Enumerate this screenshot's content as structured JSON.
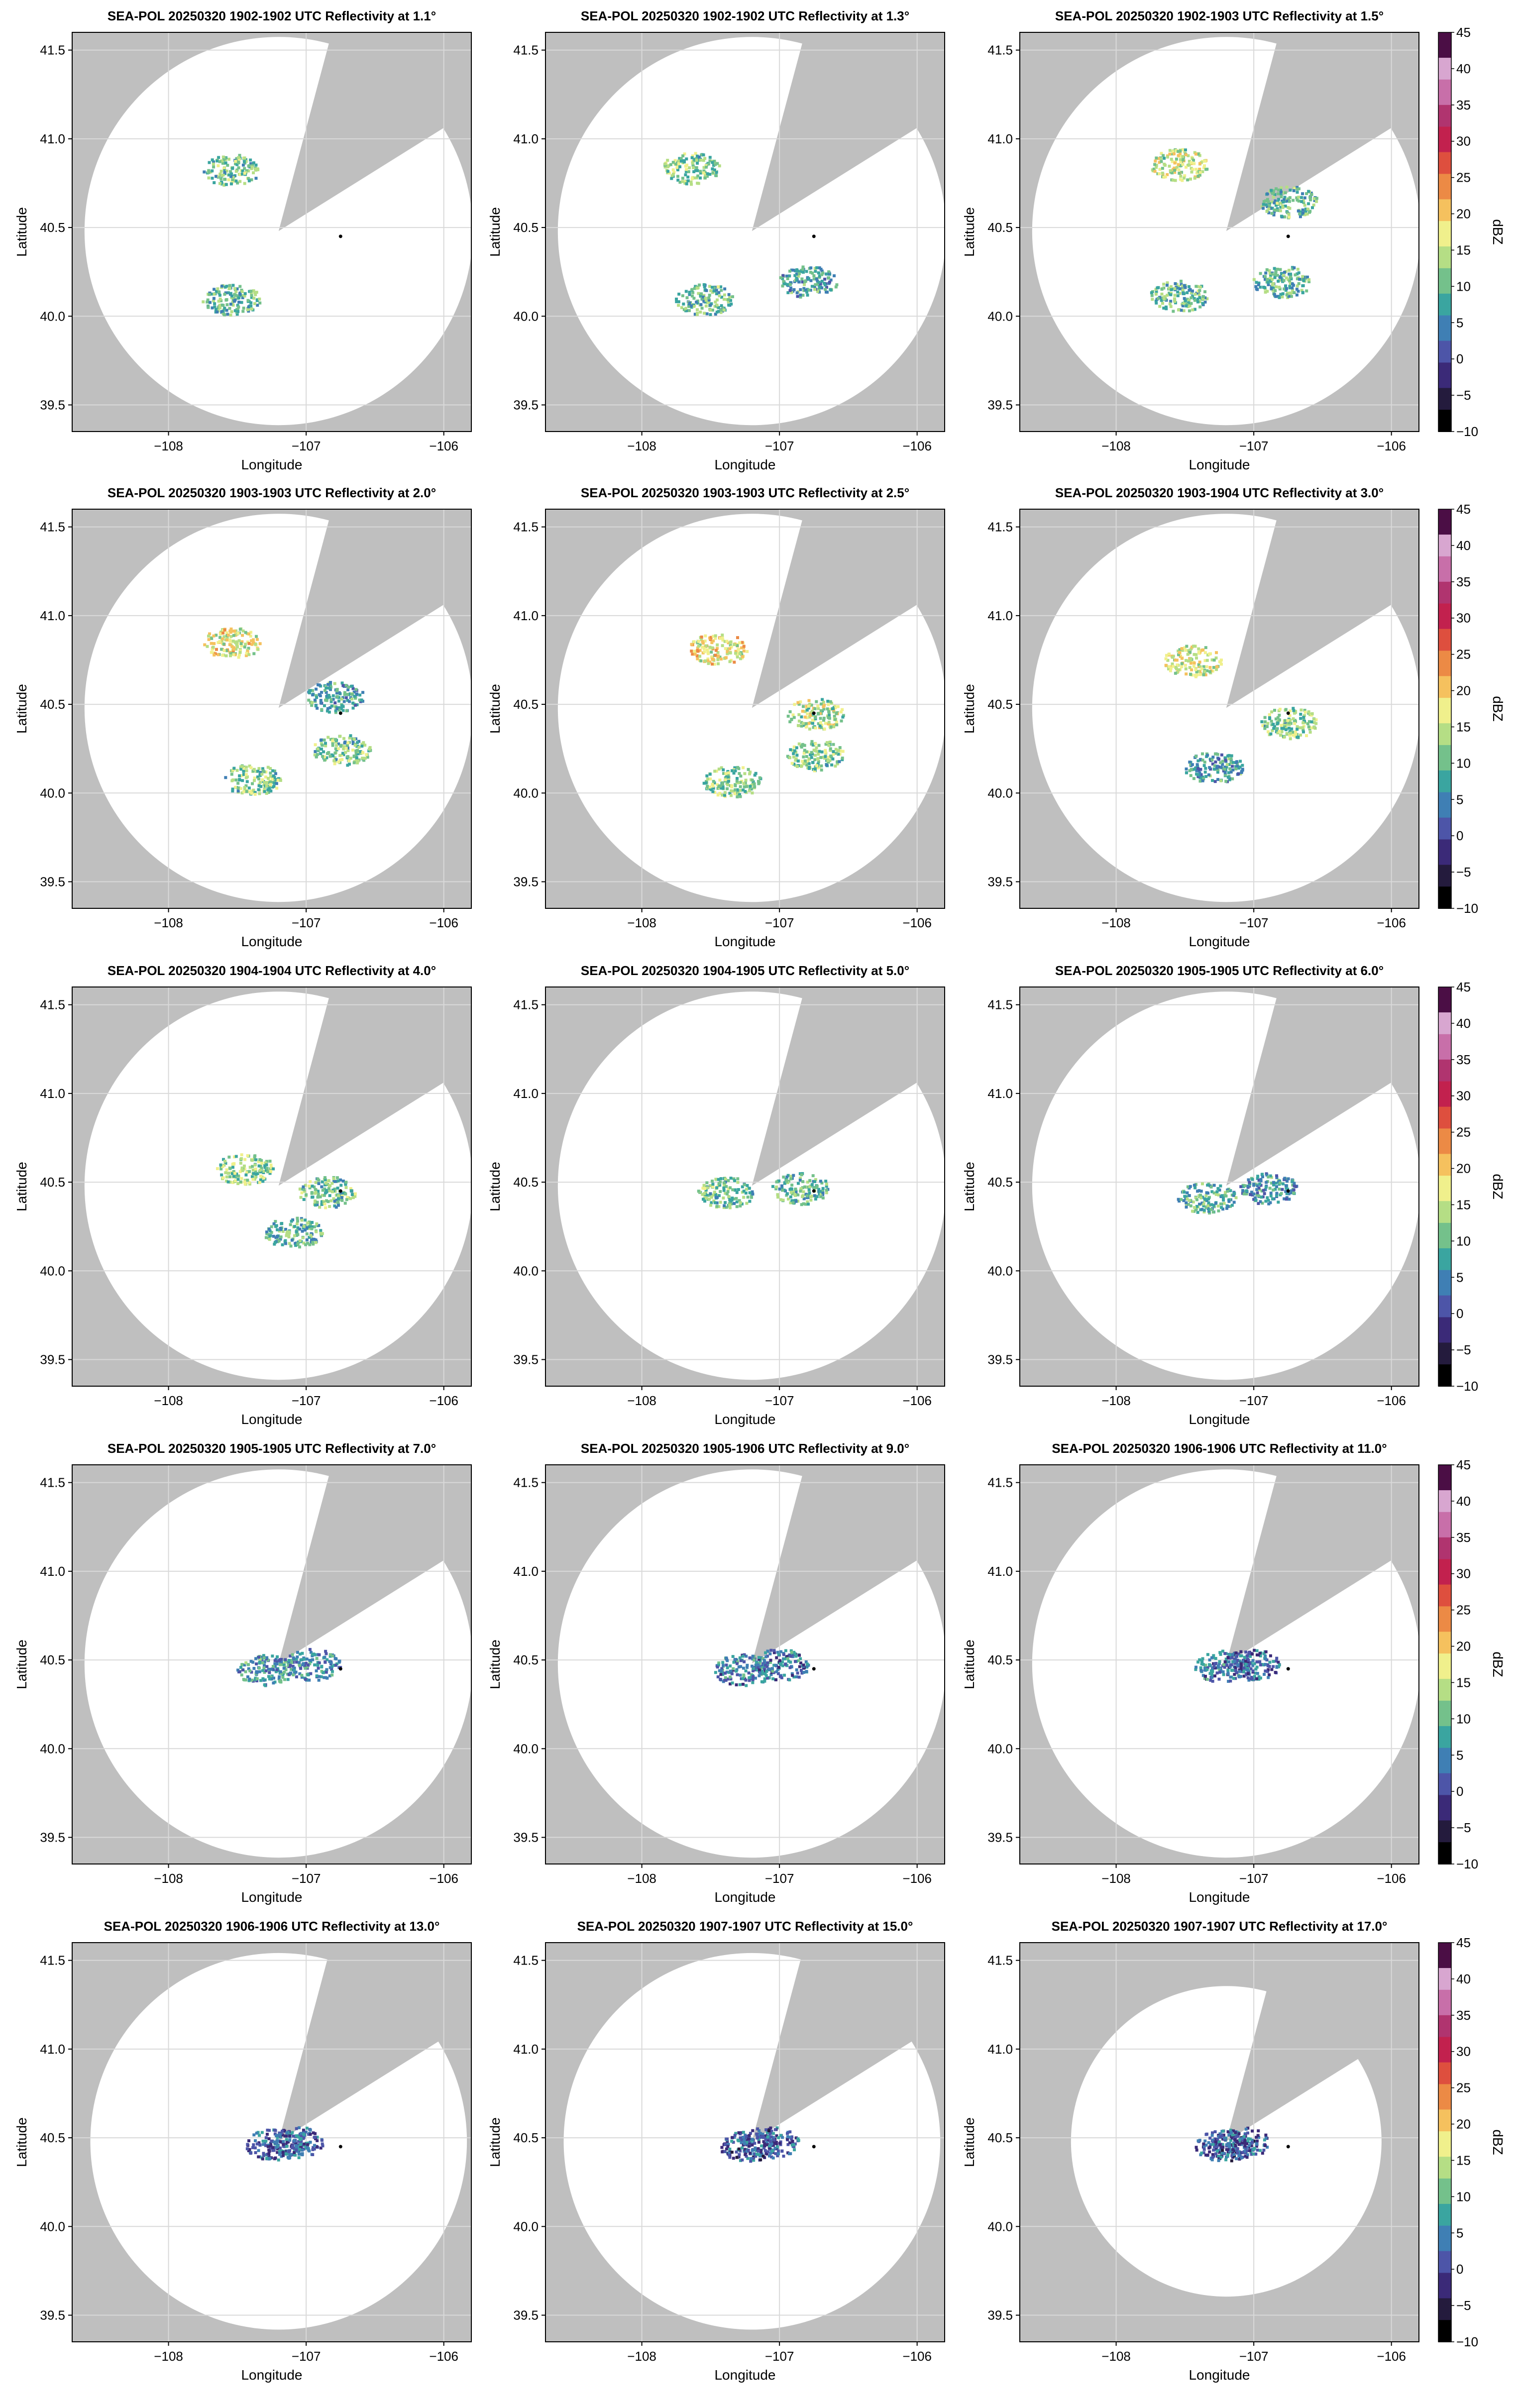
{
  "colors": {
    "background": "#bfbfbf",
    "coverage": "#ffffff",
    "grid": "#d9d9d9",
    "radar_marker": "#000000",
    "colormap": [
      "#000000",
      "#241b3d",
      "#3b2a78",
      "#4d55a8",
      "#3f7fb4",
      "#3aa5a0",
      "#74c18b",
      "#b5de85",
      "#f0f08c",
      "#f5c15e",
      "#ec8a45",
      "#de4f3e",
      "#c2214e",
      "#b0346f",
      "#c86fa9",
      "#d8a6d0",
      "#4b0e45"
    ]
  },
  "colorbar": {
    "label": "dBZ",
    "ticks": [
      "45",
      "40",
      "35",
      "30",
      "25",
      "20",
      "15",
      "10",
      "5",
      "0",
      "−5",
      "−10"
    ]
  },
  "chart_data": [
    {
      "type": "heatmap",
      "title": "SEA-POL 20250320 1902-1902 UTC Reflectivity at 1.1°",
      "xlabel": "Longitude",
      "ylabel": "Latitude",
      "xlim": [
        -108.7,
        -105.8
      ],
      "ylim": [
        39.35,
        41.6
      ],
      "xticks": [
        "−108",
        "−107",
        "−106"
      ],
      "yticks": [
        "39.5",
        "40.0",
        "40.5",
        "41.0",
        "41.5"
      ],
      "radar_site": [
        -106.75,
        40.45
      ],
      "sweep_center": [
        -107.2,
        40.48
      ],
      "elevation_deg": 1.1,
      "echoes": [
        {
          "lon": -107.55,
          "lat": 40.83,
          "dbz": 11
        },
        {
          "lon": -107.55,
          "lat": 40.1,
          "dbz": 10
        }
      ]
    },
    {
      "type": "heatmap",
      "title": "SEA-POL 20250320 1902-1902 UTC Reflectivity at 1.3°",
      "xlabel": "Longitude",
      "ylabel": "Latitude",
      "xlim": [
        -108.7,
        -105.8
      ],
      "ylim": [
        39.35,
        41.6
      ],
      "xticks": [
        "−108",
        "−107",
        "−106"
      ],
      "yticks": [
        "39.5",
        "40.0",
        "40.5",
        "41.0",
        "41.5"
      ],
      "radar_site": [
        -106.75,
        40.45
      ],
      "sweep_center": [
        -107.2,
        40.48
      ],
      "elevation_deg": 1.3,
      "echoes": [
        {
          "lon": -107.65,
          "lat": 40.84,
          "dbz": 12
        },
        {
          "lon": -107.55,
          "lat": 40.1,
          "dbz": 10
        },
        {
          "lon": -106.8,
          "lat": 40.2,
          "dbz": 8
        }
      ]
    },
    {
      "type": "heatmap",
      "title": "SEA-POL 20250320 1902-1903 UTC Reflectivity at 1.5°",
      "xlabel": "Longitude",
      "ylabel": "Latitude",
      "xlim": [
        -108.7,
        -105.8
      ],
      "ylim": [
        39.35,
        41.6
      ],
      "xticks": [
        "−108",
        "−107",
        "−106"
      ],
      "yticks": [
        "39.5",
        "40.0",
        "40.5",
        "41.0",
        "41.5"
      ],
      "radar_site": [
        -106.75,
        40.45
      ],
      "sweep_center": [
        -107.2,
        40.48
      ],
      "elevation_deg": 1.5,
      "echoes": [
        {
          "lon": -107.55,
          "lat": 40.86,
          "dbz": 15
        },
        {
          "lon": -106.75,
          "lat": 40.65,
          "dbz": 10
        },
        {
          "lon": -107.55,
          "lat": 40.12,
          "dbz": 10
        },
        {
          "lon": -106.8,
          "lat": 40.2,
          "dbz": 9
        }
      ]
    },
    {
      "type": "heatmap",
      "title": "SEA-POL 20250320 1903-1903 UTC Reflectivity at 2.0°",
      "xlabel": "Longitude",
      "ylabel": "Latitude",
      "xlim": [
        -108.7,
        -105.8
      ],
      "ylim": [
        39.35,
        41.6
      ],
      "xticks": [
        "−108",
        "−107",
        "−106"
      ],
      "yticks": [
        "39.5",
        "40.0",
        "40.5",
        "41.0",
        "41.5"
      ],
      "radar_site": [
        -106.75,
        40.45
      ],
      "sweep_center": [
        -107.2,
        40.48
      ],
      "elevation_deg": 2.0,
      "echoes": [
        {
          "lon": -107.55,
          "lat": 40.85,
          "dbz": 17
        },
        {
          "lon": -106.8,
          "lat": 40.55,
          "dbz": 8
        },
        {
          "lon": -106.75,
          "lat": 40.25,
          "dbz": 11
        },
        {
          "lon": -107.4,
          "lat": 40.08,
          "dbz": 12
        }
      ]
    },
    {
      "type": "heatmap",
      "title": "SEA-POL 20250320 1903-1903 UTC Reflectivity at 2.5°",
      "xlabel": "Longitude",
      "ylabel": "Latitude",
      "xlim": [
        -108.7,
        -105.8
      ],
      "ylim": [
        39.35,
        41.6
      ],
      "xticks": [
        "−108",
        "−107",
        "−106"
      ],
      "yticks": [
        "39.5",
        "40.0",
        "40.5",
        "41.0",
        "41.5"
      ],
      "radar_site": [
        -106.75,
        40.45
      ],
      "sweep_center": [
        -107.2,
        40.48
      ],
      "elevation_deg": 2.5,
      "echoes": [
        {
          "lon": -107.45,
          "lat": 40.82,
          "dbz": 18
        },
        {
          "lon": -106.75,
          "lat": 40.45,
          "dbz": 14
        },
        {
          "lon": -106.75,
          "lat": 40.22,
          "dbz": 12
        },
        {
          "lon": -107.35,
          "lat": 40.07,
          "dbz": 12
        }
      ]
    },
    {
      "type": "heatmap",
      "title": "SEA-POL 20250320 1903-1904 UTC Reflectivity at 3.0°",
      "xlabel": "Longitude",
      "ylabel": "Latitude",
      "xlim": [
        -108.7,
        -105.8
      ],
      "ylim": [
        39.35,
        41.6
      ],
      "xticks": [
        "−108",
        "−107",
        "−106"
      ],
      "yticks": [
        "39.5",
        "40.0",
        "40.5",
        "41.0",
        "41.5"
      ],
      "radar_site": [
        -106.75,
        40.45
      ],
      "sweep_center": [
        -107.2,
        40.48
      ],
      "elevation_deg": 3.0,
      "echoes": [
        {
          "lon": -107.45,
          "lat": 40.75,
          "dbz": 16
        },
        {
          "lon": -106.75,
          "lat": 40.4,
          "dbz": 12
        },
        {
          "lon": -107.3,
          "lat": 40.15,
          "dbz": 7
        }
      ]
    },
    {
      "type": "heatmap",
      "title": "SEA-POL 20250320 1904-1904 UTC Reflectivity at 4.0°",
      "xlabel": "Longitude",
      "ylabel": "Latitude",
      "xlim": [
        -108.7,
        -105.8
      ],
      "ylim": [
        39.35,
        41.6
      ],
      "xticks": [
        "−108",
        "−107",
        "−106"
      ],
      "yticks": [
        "39.5",
        "40.0",
        "40.5",
        "41.0",
        "41.5"
      ],
      "radar_site": [
        -106.75,
        40.45
      ],
      "sweep_center": [
        -107.2,
        40.48
      ],
      "elevation_deg": 4.0,
      "echoes": [
        {
          "lon": -107.45,
          "lat": 40.58,
          "dbz": 13
        },
        {
          "lon": -106.85,
          "lat": 40.45,
          "dbz": 11
        },
        {
          "lon": -107.1,
          "lat": 40.22,
          "dbz": 9
        }
      ]
    },
    {
      "type": "heatmap",
      "title": "SEA-POL 20250320 1904-1905 UTC Reflectivity at 5.0°",
      "xlabel": "Longitude",
      "ylabel": "Latitude",
      "xlim": [
        -108.7,
        -105.8
      ],
      "ylim": [
        39.35,
        41.6
      ],
      "xticks": [
        "−108",
        "−107",
        "−106"
      ],
      "yticks": [
        "39.5",
        "40.0",
        "40.5",
        "41.0",
        "41.5"
      ],
      "radar_site": [
        -106.75,
        40.45
      ],
      "sweep_center": [
        -107.2,
        40.48
      ],
      "elevation_deg": 5.0,
      "echoes": [
        {
          "lon": -107.4,
          "lat": 40.45,
          "dbz": 11
        },
        {
          "lon": -106.85,
          "lat": 40.47,
          "dbz": 9
        }
      ]
    },
    {
      "type": "heatmap",
      "title": "SEA-POL 20250320 1905-1905 UTC Reflectivity at 6.0°",
      "xlabel": "Longitude",
      "ylabel": "Latitude",
      "xlim": [
        -108.7,
        -105.8
      ],
      "ylim": [
        39.35,
        41.6
      ],
      "xticks": [
        "−108",
        "−107",
        "−106"
      ],
      "yticks": [
        "39.5",
        "40.0",
        "40.5",
        "41.0",
        "41.5"
      ],
      "radar_site": [
        -106.75,
        40.45
      ],
      "sweep_center": [
        -107.2,
        40.48
      ],
      "elevation_deg": 6.0,
      "echoes": [
        {
          "lon": -107.35,
          "lat": 40.42,
          "dbz": 9
        },
        {
          "lon": -106.9,
          "lat": 40.47,
          "dbz": 7
        }
      ]
    },
    {
      "type": "heatmap",
      "title": "SEA-POL 20250320 1905-1905 UTC Reflectivity at 7.0°",
      "xlabel": "Longitude",
      "ylabel": "Latitude",
      "xlim": [
        -108.7,
        -105.8
      ],
      "ylim": [
        39.35,
        41.6
      ],
      "xticks": [
        "−108",
        "−107",
        "−106"
      ],
      "yticks": [
        "39.5",
        "40.0",
        "40.5",
        "41.0",
        "41.5"
      ],
      "radar_site": [
        -106.75,
        40.45
      ],
      "sweep_center": [
        -107.2,
        40.48
      ],
      "elevation_deg": 7.0,
      "echoes": [
        {
          "lon": -107.3,
          "lat": 40.45,
          "dbz": 7
        },
        {
          "lon": -106.97,
          "lat": 40.48,
          "dbz": 6
        }
      ]
    },
    {
      "type": "heatmap",
      "title": "SEA-POL 20250320 1905-1906 UTC Reflectivity at 9.0°",
      "xlabel": "Longitude",
      "ylabel": "Latitude",
      "xlim": [
        -108.7,
        -105.8
      ],
      "ylim": [
        39.35,
        41.6
      ],
      "xticks": [
        "−108",
        "−107",
        "−106"
      ],
      "yticks": [
        "39.5",
        "40.0",
        "40.5",
        "41.0",
        "41.5"
      ],
      "radar_site": [
        -106.75,
        40.45
      ],
      "sweep_center": [
        -107.2,
        40.48
      ],
      "elevation_deg": 9.0,
      "echoes": [
        {
          "lon": -107.27,
          "lat": 40.45,
          "dbz": 5
        },
        {
          "lon": -107.0,
          "lat": 40.48,
          "dbz": 4
        }
      ]
    },
    {
      "type": "heatmap",
      "title": "SEA-POL 20250320 1906-1906 UTC Reflectivity at 11.0°",
      "xlabel": "Longitude",
      "ylabel": "Latitude",
      "xlim": [
        -108.7,
        -105.8
      ],
      "ylim": [
        39.35,
        41.6
      ],
      "xticks": [
        "−108",
        "−107",
        "−106"
      ],
      "yticks": [
        "39.5",
        "40.0",
        "40.5",
        "41.0",
        "41.5"
      ],
      "radar_site": [
        -106.75,
        40.45
      ],
      "sweep_center": [
        -107.2,
        40.48
      ],
      "elevation_deg": 11.0,
      "echoes": [
        {
          "lon": -107.24,
          "lat": 40.47,
          "dbz": 4
        },
        {
          "lon": -107.03,
          "lat": 40.48,
          "dbz": 3
        }
      ]
    },
    {
      "type": "heatmap",
      "title": "SEA-POL 20250320 1906-1906 UTC Reflectivity at 13.0°",
      "xlabel": "Longitude",
      "ylabel": "Latitude",
      "xlim": [
        -108.7,
        -105.8
      ],
      "ylim": [
        39.35,
        41.6
      ],
      "xticks": [
        "−108",
        "−107",
        "−106"
      ],
      "yticks": [
        "39.5",
        "40.0",
        "40.5",
        "41.0",
        "41.5"
      ],
      "radar_site": [
        -106.75,
        40.45
      ],
      "sweep_center": [
        -107.2,
        40.48
      ],
      "elevation_deg": 13.0,
      "echoes": [
        {
          "lon": -107.24,
          "lat": 40.47,
          "dbz": 3
        },
        {
          "lon": -107.07,
          "lat": 40.48,
          "dbz": 3
        }
      ]
    },
    {
      "type": "heatmap",
      "title": "SEA-POL 20250320 1907-1907 UTC Reflectivity at 15.0°",
      "xlabel": "Longitude",
      "ylabel": "Latitude",
      "xlim": [
        -108.7,
        -105.8
      ],
      "ylim": [
        39.35,
        41.6
      ],
      "xticks": [
        "−108",
        "−107",
        "−106"
      ],
      "yticks": [
        "39.5",
        "40.0",
        "40.5",
        "41.0",
        "41.5"
      ],
      "radar_site": [
        -106.75,
        40.45
      ],
      "sweep_center": [
        -107.2,
        40.48
      ],
      "elevation_deg": 15.0,
      "echoes": [
        {
          "lon": -107.23,
          "lat": 40.46,
          "dbz": 2
        },
        {
          "lon": -107.08,
          "lat": 40.48,
          "dbz": 2
        }
      ]
    },
    {
      "type": "heatmap",
      "title": "SEA-POL 20250320 1907-1907 UTC Reflectivity at 17.0°",
      "xlabel": "Longitude",
      "ylabel": "Latitude",
      "xlim": [
        -108.7,
        -105.8
      ],
      "ylim": [
        39.35,
        41.6
      ],
      "xticks": [
        "−108",
        "−107",
        "−106"
      ],
      "yticks": [
        "39.5",
        "40.0",
        "40.5",
        "41.0",
        "41.5"
      ],
      "radar_site": [
        -106.75,
        40.45
      ],
      "sweep_center": [
        -107.2,
        40.48
      ],
      "elevation_deg": 17.0,
      "echoes": [
        {
          "lon": -107.22,
          "lat": 40.46,
          "dbz": 2
        },
        {
          "lon": -107.1,
          "lat": 40.48,
          "dbz": 2
        }
      ]
    }
  ]
}
